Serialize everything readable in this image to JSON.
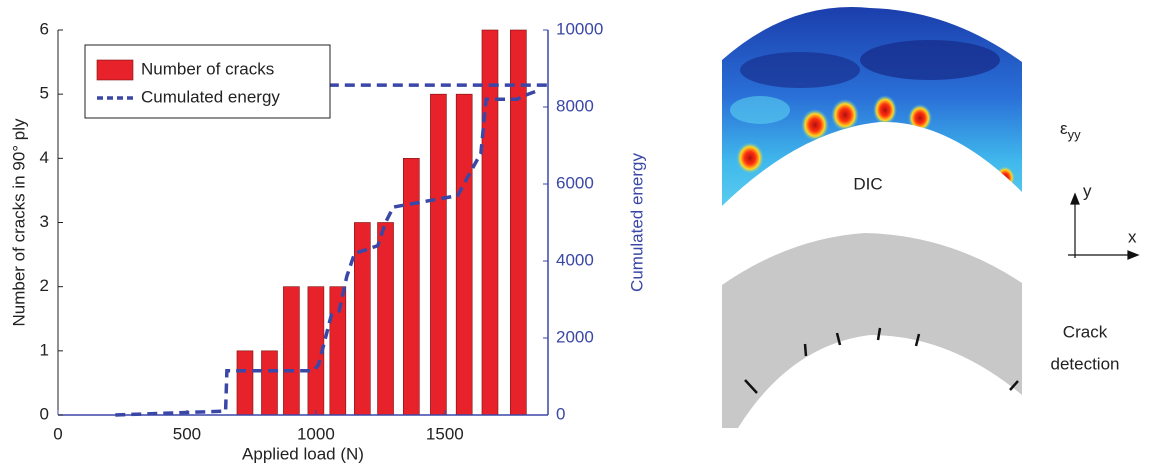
{
  "chart_data": {
    "type": "bar",
    "xlabel": "Applied load (N)",
    "ylabel": "Number of cracks in 90° ply",
    "y2label": "Cumulated energy",
    "xlim": [
      0,
      1900
    ],
    "xticks": [
      0,
      500,
      1000,
      1500
    ],
    "ylim": [
      0,
      6
    ],
    "yticks": [
      0,
      1,
      2,
      3,
      4,
      5,
      6
    ],
    "y2lim": [
      0,
      10000
    ],
    "y2ticks": [
      0,
      2000,
      4000,
      6000,
      8000,
      10000
    ],
    "legend": "upper left",
    "series": [
      {
        "name": "Number of cracks",
        "type": "bar",
        "color": "#e8222a",
        "x": [
          725,
          820,
          905,
          1000,
          1085,
          1180,
          1270,
          1370,
          1475,
          1575,
          1675,
          1785
        ],
        "values": [
          1,
          1,
          2,
          2,
          2,
          3,
          3,
          4,
          5,
          5,
          6,
          6
        ]
      },
      {
        "name": "Cumulated energy",
        "type": "line",
        "axis": "y2",
        "color": "#3a47a6",
        "x": [
          222,
          650,
          655,
          990,
          1010,
          1060,
          1090,
          1120,
          1150,
          1200,
          1240,
          1270,
          1300,
          1550,
          1590,
          1640,
          1660,
          1780,
          1810,
          1850,
          null,
          1050,
          1900
        ],
        "values": [
          0,
          100,
          1150,
          1150,
          1300,
          2600,
          2700,
          3600,
          4200,
          4300,
          4400,
          5000,
          5400,
          5700,
          6200,
          6800,
          8200,
          8200,
          8300,
          8400,
          null,
          8570,
          8570
        ]
      }
    ]
  },
  "panels": {
    "strain_symbol": "ε",
    "strain_subscript": "yy",
    "dic_label": "DIC",
    "axis_y": "y",
    "axis_x": "x",
    "crack_label": [
      "Crack",
      "detection"
    ]
  }
}
